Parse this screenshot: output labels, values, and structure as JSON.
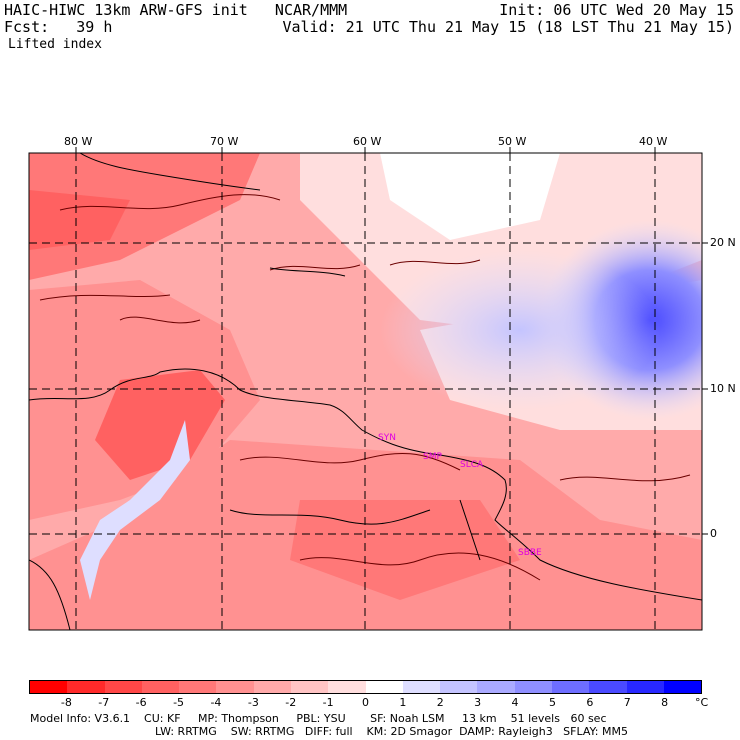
{
  "header": {
    "line1_left": "HAIC-HIWC 13km ARW-GFS init   NCAR/MMM",
    "line1_right": "Init: 06 UTC Wed 20 May 15",
    "line2_left": "Fcst:   39 h",
    "line2_right": "Valid: 21 UTC Thu 21 May 15 (18 LST Thu 21 May 15)",
    "field": "Lifted index"
  },
  "map": {
    "lon_labels": [
      "80 W",
      "70 W",
      "60 W",
      "50 W",
      "40 W"
    ],
    "lat_labels": [
      "20 N",
      "10 N",
      "0"
    ],
    "stations": [
      "SYN",
      "SMP",
      "SLCA",
      "SBBE"
    ]
  },
  "colorbar": {
    "labels": [
      "-8",
      "-7",
      "-6",
      "-5",
      "-4",
      "-3",
      "-2",
      "-1",
      "0",
      "1",
      "2",
      "3",
      "4",
      "5",
      "6",
      "7",
      "8"
    ],
    "unit": "°C",
    "colors": [
      "#ff0000",
      "#ff2a2a",
      "#ff4747",
      "#ff6161",
      "#ff7878",
      "#ff9191",
      "#ffaaaa",
      "#ffc4c4",
      "#ffdede",
      "#ffffff",
      "#dedeff",
      "#c4c4ff",
      "#aaaaff",
      "#8f8fff",
      "#6e6eff",
      "#4a4aff",
      "#2828ff",
      "#0000ff"
    ]
  },
  "model_info": {
    "line1": "Model Info: V3.6.1    CU: KF     MP: Thompson     PBL: YSU       SF: Noah LSM     13 km    51 levels   60 sec",
    "line2": "LW: RRTMG    SW: RRTMG   DIFF: full    KM: 2D Smagor  DAMP: Rayleigh3   SFLAY: MM5"
  }
}
